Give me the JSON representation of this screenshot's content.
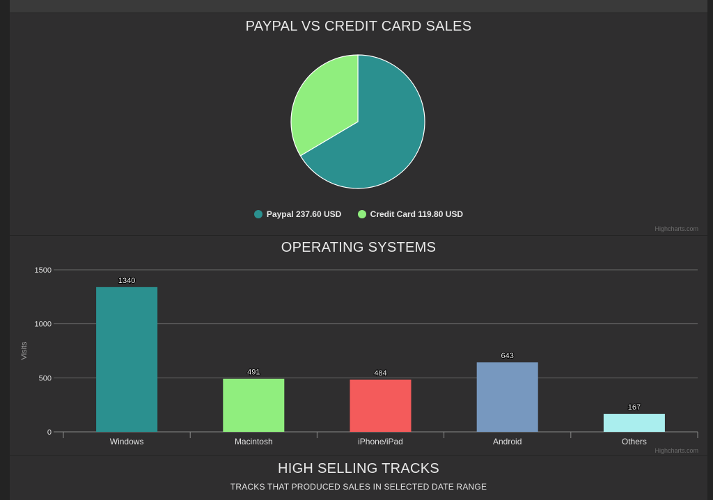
{
  "pie_chart": {
    "title": "PAYPAL VS CREDIT CARD SALES",
    "credits": "Highcharts.com",
    "legend": [
      {
        "label": "Paypal 237.60 USD",
        "color": "#2b908f"
      },
      {
        "label": "Credit Card 119.80 USD",
        "color": "#90ee7e"
      }
    ]
  },
  "bar_chart": {
    "title": "OPERATING SYSTEMS",
    "credits": "Highcharts.com"
  },
  "tracks": {
    "title": "HIGH SELLING TRACKS",
    "subtitle": "TRACKS THAT PRODUCED SALES IN SELECTED DATE RANGE"
  },
  "chart_data": [
    {
      "type": "pie",
      "title": "PAYPAL VS CREDIT CARD SALES",
      "categories": [
        "Paypal",
        "Credit Card"
      ],
      "values": [
        237.6,
        119.8
      ],
      "unit": "USD",
      "colors": [
        "#2b908f",
        "#90ee7e"
      ],
      "legend_position": "bottom"
    },
    {
      "type": "bar",
      "title": "OPERATING SYSTEMS",
      "xlabel": "",
      "ylabel": "Visits",
      "categories": [
        "Windows",
        "Macintosh",
        "iPhone/iPad",
        "Android",
        "Others"
      ],
      "values": [
        1340,
        491,
        484,
        643,
        167
      ],
      "colors": [
        "#2b908f",
        "#90ee7e",
        "#f45b5b",
        "#7798bf",
        "#aaeeee"
      ],
      "ylim": [
        0,
        1500
      ],
      "yticks": [
        0,
        500,
        1000,
        1500
      ],
      "grid": true,
      "data_labels": true
    }
  ]
}
